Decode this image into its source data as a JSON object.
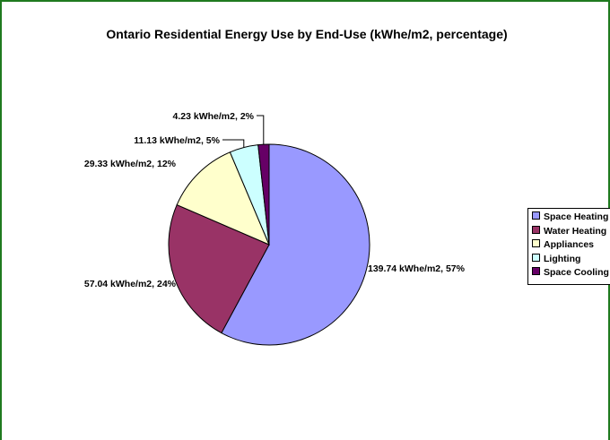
{
  "chart_data": {
    "type": "pie",
    "title": "Ontario Residential Energy Use by End-Use (kWhe/m2, percentage)",
    "slices": [
      {
        "name": "Space Heating",
        "value": 139.74,
        "percent": 57,
        "label": "139.74 kWhe/m2, 57%",
        "color": "#9999ff"
      },
      {
        "name": "Water Heating",
        "value": 57.04,
        "percent": 24,
        "label": "57.04 kWhe/m2, 24%",
        "color": "#993366"
      },
      {
        "name": "Appliances",
        "value": 29.33,
        "percent": 12,
        "label": "29.33 kWhe/m2, 12%",
        "color": "#ffffcc"
      },
      {
        "name": "Lighting",
        "value": 11.13,
        "percent": 5,
        "label": "11.13 kWhe/m2, 5%",
        "color": "#ccffff"
      },
      {
        "name": "Space Cooling",
        "value": 4.23,
        "percent": 2,
        "label": "4.23 kWhe/m2, 2%",
        "color": "#660066"
      }
    ],
    "legend_position": "right"
  }
}
